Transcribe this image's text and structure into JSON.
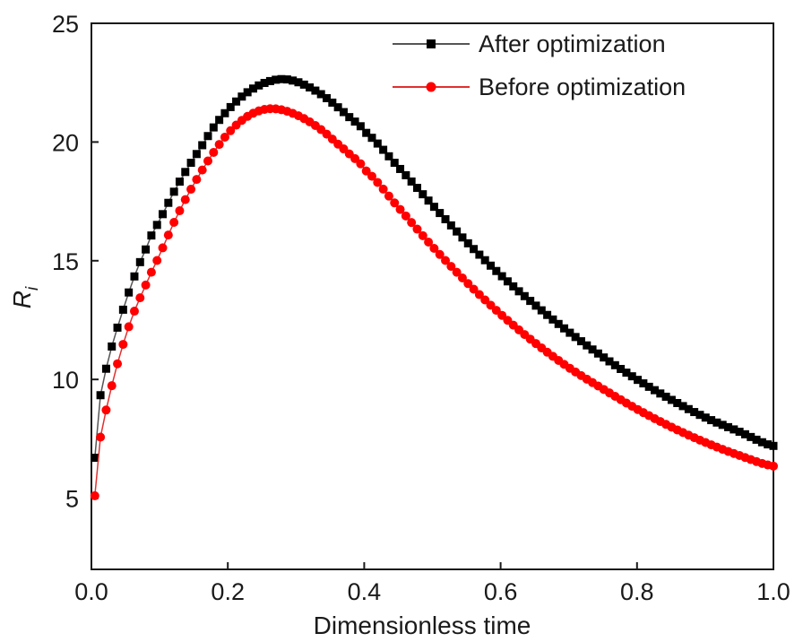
{
  "chart_data": {
    "type": "line",
    "title": "",
    "xlabel": "Dimensionless time",
    "ylabel": "R",
    "ylabel_subscript": "i",
    "xlim": [
      0.0,
      1.0
    ],
    "ylim": [
      2,
      25
    ],
    "xticks": [
      "0.0",
      "0.2",
      "0.4",
      "0.6",
      "0.8",
      "1.0"
    ],
    "xtick_values": [
      0.0,
      0.2,
      0.4,
      0.6,
      0.8,
      1.0
    ],
    "yticks": [
      "5",
      "10",
      "15",
      "20",
      "25"
    ],
    "ytick_values": [
      5,
      10,
      15,
      20,
      25
    ],
    "legend_position": "top-right",
    "series": [
      {
        "name": "After optimization",
        "color": "#000000",
        "line_color": "#555555",
        "marker": "square",
        "x": [
          0.005,
          0.01,
          0.02,
          0.03,
          0.04,
          0.05,
          0.06,
          0.07,
          0.08,
          0.09,
          0.1,
          0.12,
          0.14,
          0.16,
          0.18,
          0.2,
          0.22,
          0.24,
          0.26,
          0.28,
          0.3,
          0.32,
          0.34,
          0.36,
          0.38,
          0.4,
          0.45,
          0.5,
          0.55,
          0.6,
          0.65,
          0.7,
          0.75,
          0.8,
          0.85,
          0.9,
          0.95,
          1.0
        ],
        "values": [
          6.7,
          8.8,
          10.25,
          11.4,
          12.35,
          13.25,
          14.1,
          14.85,
          15.5,
          16.2,
          16.75,
          17.85,
          18.85,
          19.75,
          20.65,
          21.35,
          21.9,
          22.3,
          22.55,
          22.65,
          22.55,
          22.3,
          21.95,
          21.5,
          21.0,
          20.45,
          18.95,
          17.35,
          15.8,
          14.4,
          13.15,
          12.0,
          10.95,
          10.0,
          9.15,
          8.4,
          7.8,
          7.2
        ]
      },
      {
        "name": "Before optimization",
        "color": "#ff0000",
        "line_color": "#e03030",
        "marker": "circle",
        "x": [
          0.005,
          0.01,
          0.02,
          0.03,
          0.04,
          0.05,
          0.06,
          0.07,
          0.08,
          0.09,
          0.1,
          0.12,
          0.14,
          0.16,
          0.18,
          0.2,
          0.22,
          0.24,
          0.26,
          0.28,
          0.3,
          0.32,
          0.34,
          0.36,
          0.38,
          0.4,
          0.45,
          0.5,
          0.55,
          0.6,
          0.65,
          0.7,
          0.75,
          0.8,
          0.85,
          0.9,
          0.95,
          1.0
        ],
        "values": [
          5.1,
          7.05,
          8.5,
          9.75,
          10.85,
          11.8,
          12.65,
          13.35,
          14.0,
          14.65,
          15.3,
          16.55,
          17.7,
          18.7,
          19.6,
          20.35,
          20.9,
          21.25,
          21.4,
          21.35,
          21.15,
          20.85,
          20.45,
          19.95,
          19.45,
          18.85,
          17.25,
          15.6,
          14.1,
          12.75,
          11.55,
          10.5,
          9.6,
          8.75,
          8.0,
          7.35,
          6.8,
          6.35
        ]
      }
    ]
  }
}
